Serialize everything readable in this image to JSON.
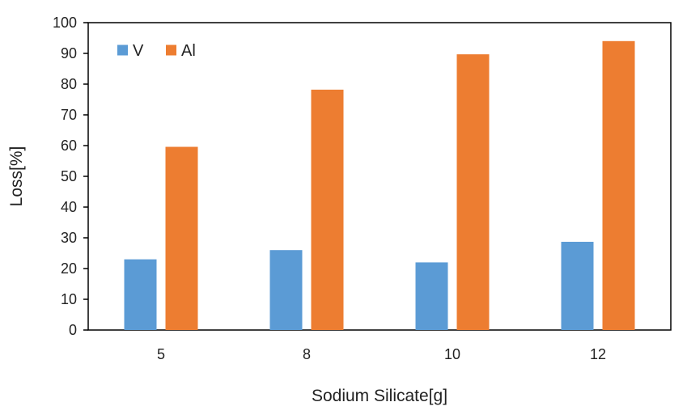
{
  "chart_data": {
    "type": "bar",
    "categories": [
      "5",
      "8",
      "10",
      "12"
    ],
    "series": [
      {
        "name": "V",
        "values": [
          23,
          26,
          22,
          28.7
        ]
      },
      {
        "name": "Al",
        "values": [
          59.6,
          78.2,
          89.7,
          94
        ]
      }
    ],
    "xlabel": "Sodium Silicate[g]",
    "ylabel": "Loss[%]",
    "ylim": [
      0,
      100
    ],
    "yticks": [
      "0",
      "10",
      "20",
      "30",
      "40",
      "50",
      "60",
      "70",
      "80",
      "90",
      "100"
    ],
    "grid": false,
    "legend_position": "top-left",
    "colors": {
      "V": "#5b9bd5",
      "Al": "#ed7d31",
      "axis": "#000000"
    }
  }
}
